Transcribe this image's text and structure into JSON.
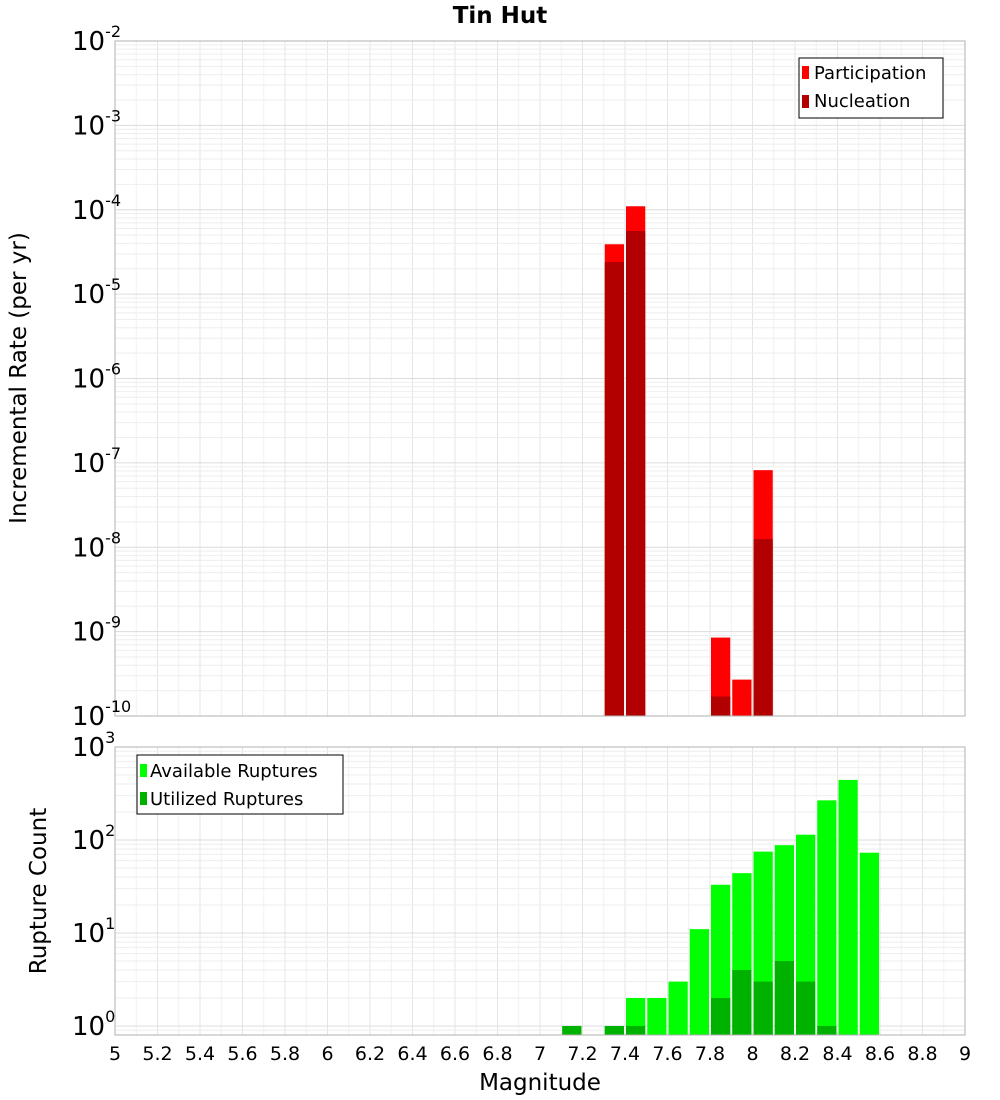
{
  "chart_data": {
    "title": "Tin Hut",
    "xlabel": "Magnitude",
    "xlim": [
      5,
      9
    ],
    "xticks": [
      "5",
      "5.2",
      "5.4",
      "5.6",
      "5.8",
      "6",
      "6.2",
      "6.4",
      "6.6",
      "6.8",
      "7",
      "7.2",
      "7.4",
      "7.6",
      "7.8",
      "8",
      "8.2",
      "8.4",
      "8.6",
      "8.8",
      "9"
    ],
    "bin_width": 0.1,
    "panels": [
      {
        "type": "bar",
        "ylabel": "Incremental Rate (per yr)",
        "yscale": "log",
        "ylim": [
          1e-10,
          0.01
        ],
        "yticks": [
          {
            "base": "10",
            "exp": "-10"
          },
          {
            "base": "10",
            "exp": "-9"
          },
          {
            "base": "10",
            "exp": "-8"
          },
          {
            "base": "10",
            "exp": "-7"
          },
          {
            "base": "10",
            "exp": "-6"
          },
          {
            "base": "10",
            "exp": "-5"
          },
          {
            "base": "10",
            "exp": "-4"
          },
          {
            "base": "10",
            "exp": "-3"
          },
          {
            "base": "10",
            "exp": "-2"
          }
        ],
        "legend_position": "top-right",
        "series": [
          {
            "name": "Participation",
            "color": "#ff0000",
            "x": [
              7.35,
              7.45,
              7.85,
              7.95,
              8.05
            ],
            "values": [
              3.9e-05,
              0.00011,
              8.5e-10,
              2.7e-10,
              8.2e-08
            ]
          },
          {
            "name": "Nucleation",
            "color": "#b20000",
            "x": [
              7.35,
              7.45,
              7.85,
              8.05
            ],
            "values": [
              2.4e-05,
              5.6e-05,
              1.7e-10,
              1.25e-08
            ]
          }
        ]
      },
      {
        "type": "bar",
        "ylabel": "Rupture Count",
        "yscale": "log",
        "ylim": [
          0.8,
          1000
        ],
        "yticks": [
          {
            "base": "10",
            "exp": "0"
          },
          {
            "base": "10",
            "exp": "1"
          },
          {
            "base": "10",
            "exp": "2"
          },
          {
            "base": "10",
            "exp": "3"
          }
        ],
        "legend_position": "top-left",
        "series": [
          {
            "name": "Available Ruptures",
            "color": "#00ff00",
            "x": [
              7.15,
              7.35,
              7.45,
              7.55,
              7.65,
              7.75,
              7.85,
              7.95,
              8.05,
              8.15,
              8.25,
              8.35,
              8.45,
              8.55
            ],
            "values": [
              1,
              1,
              2,
              2,
              3,
              11,
              33,
              44,
              75,
              88,
              114,
              267,
              443,
              73
            ]
          },
          {
            "name": "Utilized Ruptures",
            "color": "#00b200",
            "x": [
              7.15,
              7.35,
              7.45,
              7.85,
              7.95,
              8.05,
              8.15,
              8.25,
              8.35
            ],
            "values": [
              1,
              1,
              1,
              2,
              4,
              3,
              5,
              3,
              1
            ]
          }
        ]
      }
    ]
  }
}
